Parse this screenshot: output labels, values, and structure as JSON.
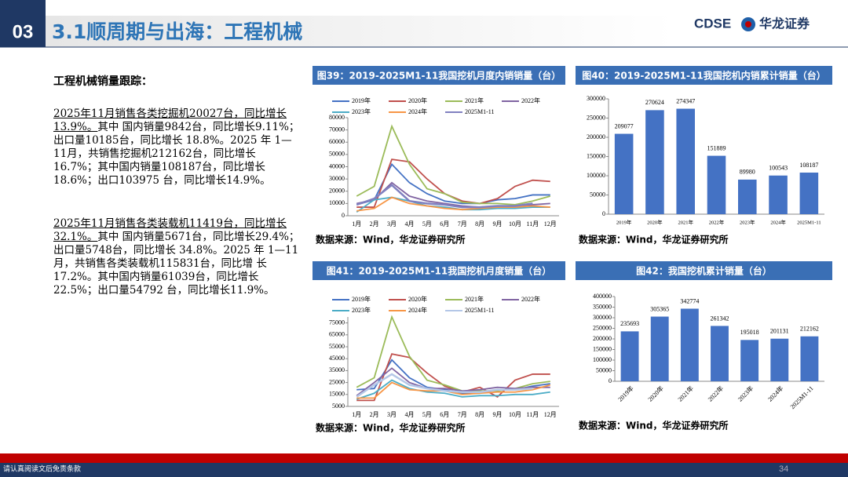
{
  "header": {
    "section": "03",
    "title": "3.1顺周期与出海：工程机械",
    "logo": "CDSE",
    "company": "华龙证券"
  },
  "text": {
    "heading": "工程机械销量跟踪：",
    "paragraphs": [
      {
        "lead": "2025年11月销售各类挖掘机20027台，同比增长13.9%。",
        "body": "其中 国内销量9842台，同比增长9.11%；出口量10185台，同比增长 18.8%。2025 年 1—11月，共销售挖掘机212162台，同比增长 16.7%；其中国内销量108187台，同比增长18.6%；出口103975 台，同比增长14.9%。"
      },
      {
        "lead": "2025年11月销售各类装载机11419台，同比增长32.1%。",
        "body": "其中 国内销量5671台，同比增长29.4%；出口量5748台，同比增长 34.8%。2025 年 1—11月，共销售各类装载机115831台，同比增 长17.2%。其中国内销量61039台，同比增长22.5%；出口量54792 台，同比增长11.9%。"
      }
    ]
  },
  "chart_data": [
    {
      "type": "line",
      "title": "图39：2019-2025M1-11我国挖机月度内销销量（台）",
      "source": "数据来源：Wind，华龙证券研究所",
      "categories": [
        "1月",
        "2月",
        "3月",
        "4月",
        "5月",
        "6月",
        "7月",
        "8月",
        "9月",
        "10月",
        "11月",
        "12月"
      ],
      "ylim": [
        0,
        80000
      ],
      "yticks": [
        0,
        10000,
        20000,
        30000,
        40000,
        50000,
        60000,
        70000,
        80000
      ],
      "series": [
        {
          "name": "2019年",
          "color": "#4472c4",
          "values": [
            9000,
            13000,
            42000,
            27000,
            18000,
            12000,
            10000,
            10000,
            13000,
            14000,
            17000,
            17000
          ]
        },
        {
          "name": "2020年",
          "color": "#c0504d",
          "values": [
            7000,
            7000,
            46000,
            44000,
            30000,
            18000,
            12000,
            10000,
            14000,
            24000,
            29000,
            28000
          ]
        },
        {
          "name": "2021年",
          "color": "#9bbb59",
          "values": [
            16000,
            24000,
            73000,
            42000,
            22000,
            18000,
            11000,
            10000,
            10000,
            9000,
            12000,
            16000
          ]
        },
        {
          "name": "2022年",
          "color": "#8064a2",
          "values": [
            10000,
            13000,
            27000,
            16000,
            12000,
            10000,
            8000,
            7000,
            8000,
            8000,
            9000,
            10000
          ]
        },
        {
          "name": "2023年",
          "color": "#4bacc6",
          "values": [
            3000,
            13000,
            15000,
            12000,
            8000,
            7000,
            5000,
            5000,
            6000,
            6000,
            7000,
            7000
          ]
        },
        {
          "name": "2024年",
          "color": "#f79646",
          "values": [
            4000,
            6000,
            15000,
            10000,
            8000,
            6000,
            5000,
            6000,
            7000,
            7000,
            8000,
            7000
          ]
        },
        {
          "name": "2025M1-11",
          "color": "#8080c0",
          "values": [
            9000,
            14000,
            25000,
            12000,
            10000,
            9000,
            7000,
            7000,
            8000,
            8000,
            10000,
            null
          ]
        }
      ]
    },
    {
      "type": "bar",
      "title": "图40：2019-2025M1-11我国挖机内销累计销量（台）",
      "source": "数据来源：Wind，华龙证券研究所",
      "categories": [
        "2019年",
        "2020年",
        "2021年",
        "2022年",
        "2023年",
        "2024年",
        "2025M1-11"
      ],
      "values": [
        209077,
        270624,
        274347,
        151889,
        89980,
        100543,
        108187
      ],
      "color": "#4472c4",
      "ylim": [
        0,
        300000
      ],
      "yticks": [
        0,
        50000,
        100000,
        150000,
        200000,
        250000,
        300000
      ]
    },
    {
      "type": "line",
      "title": "图41：2019-2025M1-11我国挖机月度销量（台）",
      "source": "数据来源：Wind，华龙证券研究所",
      "categories": [
        "1月",
        "2月",
        "3月",
        "4月",
        "5月",
        "6月",
        "7月",
        "8月",
        "9月",
        "10月",
        "11月",
        "12月"
      ],
      "ylim": [
        5000,
        80000
      ],
      "yticks": [
        5000,
        15000,
        25000,
        35000,
        45000,
        55000,
        65000,
        75000
      ],
      "series": [
        {
          "name": "2019年",
          "color": "#4472c4",
          "values": [
            19000,
            20000,
            44000,
            29000,
            21000,
            19000,
            16000,
            16000,
            19000,
            19000,
            22000,
            24000
          ]
        },
        {
          "name": "2020年",
          "color": "#c0504d",
          "values": [
            10000,
            10000,
            49000,
            46000,
            33000,
            22000,
            17000,
            21000,
            13000,
            27000,
            32000,
            32000
          ]
        },
        {
          "name": "2021年",
          "color": "#9bbb59",
          "values": [
            21000,
            29000,
            80000,
            47000,
            27000,
            23000,
            18000,
            18000,
            18000,
            20000,
            24000,
            26000
          ]
        },
        {
          "name": "2022年",
          "color": "#8064a2",
          "values": [
            14000,
            25000,
            37000,
            25000,
            20000,
            20000,
            18000,
            19000,
            21000,
            20000,
            21000,
            21000
          ]
        },
        {
          "name": "2023年",
          "color": "#4bacc6",
          "values": [
            11000,
            16000,
            27000,
            20000,
            17000,
            16000,
            13000,
            14000,
            14000,
            15000,
            15000,
            17000
          ]
        },
        {
          "name": "2024年",
          "color": "#f79646",
          "values": [
            12000,
            12000,
            25000,
            19000,
            18000,
            18000,
            15000,
            16000,
            17000,
            17000,
            19000,
            23000
          ]
        },
        {
          "name": "2025M1-11",
          "color": "#b4c7e7",
          "values": [
            13000,
            23000,
            32000,
            23000,
            20000,
            18000,
            17000,
            17000,
            19000,
            19000,
            20000,
            null
          ]
        }
      ]
    },
    {
      "type": "bar",
      "title": "图42：我国挖机累计销量（台）",
      "source": "数据来源：Wind，华龙证券研究所",
      "categories": [
        "2019年",
        "2020年",
        "2021年",
        "2022年",
        "2023年",
        "2024年",
        "2025M1-11"
      ],
      "values": [
        235693,
        305365,
        342774,
        261342,
        195018,
        201131,
        212162
      ],
      "color": "#4472c4",
      "x_rotated": true,
      "ylim": [
        0,
        400000
      ],
      "yticks": [
        0,
        50000,
        100000,
        150000,
        200000,
        250000,
        300000,
        350000,
        400000
      ]
    }
  ],
  "footer": {
    "disclaimer": "请认真阅读文后免责条款",
    "page": "34"
  }
}
